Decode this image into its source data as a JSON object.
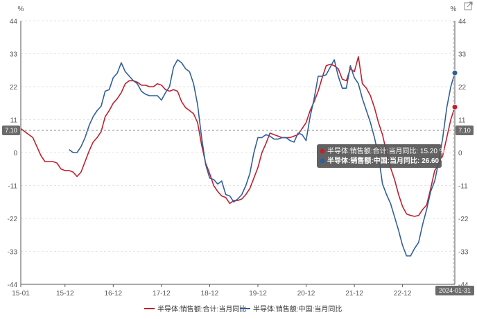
{
  "unit_left": "%",
  "unit_right": "%",
  "marker_left_label": "7.10",
  "marker_right_label": "7.10",
  "date_badge": "2024-01-31",
  "tooltip": {
    "line1": "半导体:销售额:合计:当月同比: 15.20  %",
    "line2": "半导体:销售额:中国:当月同比: 26.60  %"
  },
  "colors": {
    "total": "#c0202f",
    "china": "#2f5f9c",
    "badge_bg": "#6b6b6b",
    "tooltip_bg": "#555555"
  },
  "icons": [
    "share-icon"
  ],
  "chart_data": {
    "type": "line",
    "title": "",
    "xlabel": "",
    "ylabel": "%",
    "ylim": [
      -44,
      44
    ],
    "yticks": [
      44,
      33,
      22,
      11,
      0,
      -11,
      -22,
      -33,
      -44
    ],
    "x_range": [
      "2015-01",
      "2024-01"
    ],
    "x_tick_labels": [
      {
        "date": "2015-01",
        "label": "15-01"
      },
      {
        "date": "2015-12",
        "label": "15-12"
      },
      {
        "date": "2016-12",
        "label": "16-12"
      },
      {
        "date": "2017-12",
        "label": "17-12"
      },
      {
        "date": "2018-12",
        "label": "18-12"
      },
      {
        "date": "2019-12",
        "label": "19-12"
      },
      {
        "date": "2020-12",
        "label": "20-12"
      },
      {
        "date": "2021-12",
        "label": "21-12"
      },
      {
        "date": "2022-12",
        "label": "22-12"
      }
    ],
    "grid": true,
    "legend_position": "bottom",
    "series": [
      {
        "name": "半导体:销售额:合计:当月同比",
        "color": "#c0202f",
        "points": [
          [
            "2015-01",
            8.0
          ],
          [
            "2015-02",
            7.0
          ],
          [
            "2015-03",
            6.0
          ],
          [
            "2015-04",
            5.0
          ],
          [
            "2015-05",
            2.0
          ],
          [
            "2015-06",
            -1.0
          ],
          [
            "2015-07",
            -3.0
          ],
          [
            "2015-08",
            -3.0
          ],
          [
            "2015-09",
            -3.0
          ],
          [
            "2015-10",
            -3.5
          ],
          [
            "2015-11",
            -5.5
          ],
          [
            "2015-12",
            -6.0
          ],
          [
            "2016-01",
            -6.0
          ],
          [
            "2016-02",
            -6.5
          ],
          [
            "2016-03",
            -8.0
          ],
          [
            "2016-04",
            -6.5
          ],
          [
            "2016-05",
            -3.0
          ],
          [
            "2016-06",
            0.5
          ],
          [
            "2016-07",
            3.5
          ],
          [
            "2016-08",
            5.0
          ],
          [
            "2016-09",
            7.0
          ],
          [
            "2016-10",
            12.0
          ],
          [
            "2016-11",
            14.0
          ],
          [
            "2016-12",
            16.5
          ],
          [
            "2017-01",
            18.0
          ],
          [
            "2017-02",
            20.0
          ],
          [
            "2017-03",
            23.0
          ],
          [
            "2017-04",
            24.0
          ],
          [
            "2017-05",
            24.0
          ],
          [
            "2017-06",
            23.5
          ],
          [
            "2017-07",
            22.5
          ],
          [
            "2017-08",
            22.5
          ],
          [
            "2017-09",
            22.0
          ],
          [
            "2017-10",
            22.0
          ],
          [
            "2017-11",
            23.0
          ],
          [
            "2017-12",
            22.5
          ],
          [
            "2018-01",
            21.0
          ],
          [
            "2018-02",
            20.5
          ],
          [
            "2018-03",
            21.0
          ],
          [
            "2018-04",
            20.5
          ],
          [
            "2018-05",
            17.0
          ],
          [
            "2018-06",
            15.0
          ],
          [
            "2018-07",
            14.0
          ],
          [
            "2018-08",
            13.0
          ],
          [
            "2018-09",
            10.0
          ],
          [
            "2018-10",
            2.5
          ],
          [
            "2018-11",
            -3.5
          ],
          [
            "2018-12",
            -7.0
          ],
          [
            "2019-01",
            -11.0
          ],
          [
            "2019-02",
            -13.0
          ],
          [
            "2019-03",
            -14.5
          ],
          [
            "2019-04",
            -15.0
          ],
          [
            "2019-05",
            -17.0
          ],
          [
            "2019-06",
            -16.0
          ],
          [
            "2019-07",
            -16.0
          ],
          [
            "2019-08",
            -15.5
          ],
          [
            "2019-09",
            -14.0
          ],
          [
            "2019-10",
            -12.0
          ],
          [
            "2019-11",
            -8.5
          ],
          [
            "2019-12",
            -5.0
          ],
          [
            "2020-01",
            0.0
          ],
          [
            "2020-02",
            3.0
          ],
          [
            "2020-03",
            6.5
          ],
          [
            "2020-04",
            6.0
          ],
          [
            "2020-05",
            5.5
          ],
          [
            "2020-06",
            5.0
          ],
          [
            "2020-07",
            5.0
          ],
          [
            "2020-08",
            5.0
          ],
          [
            "2020-09",
            5.5
          ],
          [
            "2020-10",
            6.0
          ],
          [
            "2020-11",
            8.0
          ],
          [
            "2020-12",
            10.0
          ],
          [
            "2021-01",
            14.0
          ],
          [
            "2021-02",
            17.0
          ],
          [
            "2021-03",
            20.5
          ],
          [
            "2021-04",
            25.0
          ],
          [
            "2021-05",
            29.0
          ],
          [
            "2021-06",
            29.5
          ],
          [
            "2021-07",
            29.0
          ],
          [
            "2021-08",
            28.0
          ],
          [
            "2021-09",
            24.5
          ],
          [
            "2021-10",
            24.0
          ],
          [
            "2021-11",
            28.0
          ],
          [
            "2021-12",
            27.0
          ],
          [
            "2022-01",
            32.0
          ],
          [
            "2022-02",
            23.0
          ],
          [
            "2022-03",
            21.5
          ],
          [
            "2022-04",
            19.0
          ],
          [
            "2022-05",
            15.0
          ],
          [
            "2022-06",
            10.0
          ],
          [
            "2022-07",
            6.0
          ],
          [
            "2022-08",
            0.0
          ],
          [
            "2022-09",
            -5.0
          ],
          [
            "2022-10",
            -9.0
          ],
          [
            "2022-11",
            -14.0
          ],
          [
            "2022-12",
            -18.0
          ],
          [
            "2023-01",
            -20.5
          ],
          [
            "2023-02",
            -21.0
          ],
          [
            "2023-03",
            -21.3
          ],
          [
            "2023-04",
            -21.0
          ],
          [
            "2023-05",
            -19.0
          ],
          [
            "2023-06",
            -17.5
          ],
          [
            "2023-07",
            -12.0
          ],
          [
            "2023-08",
            -6.0
          ],
          [
            "2023-09",
            -4.0
          ],
          [
            "2023-10",
            -1.0
          ],
          [
            "2023-11",
            5.0
          ],
          [
            "2023-12",
            11.0
          ],
          [
            "2024-01",
            15.2
          ]
        ]
      },
      {
        "name": "半导体:销售额:中国:当月同比",
        "color": "#2f5f9c",
        "points": [
          [
            "2016-01",
            1.0
          ],
          [
            "2016-02",
            0.0
          ],
          [
            "2016-03",
            0.0
          ],
          [
            "2016-04",
            2.0
          ],
          [
            "2016-05",
            5.0
          ],
          [
            "2016-06",
            9.0
          ],
          [
            "2016-07",
            12.0
          ],
          [
            "2016-08",
            14.0
          ],
          [
            "2016-09",
            15.5
          ],
          [
            "2016-10",
            20.5
          ],
          [
            "2016-11",
            21.0
          ],
          [
            "2016-12",
            25.0
          ],
          [
            "2017-01",
            26.5
          ],
          [
            "2017-02",
            30.0
          ],
          [
            "2017-03",
            27.0
          ],
          [
            "2017-04",
            25.5
          ],
          [
            "2017-05",
            24.0
          ],
          [
            "2017-06",
            23.0
          ],
          [
            "2017-07",
            20.5
          ],
          [
            "2017-08",
            19.5
          ],
          [
            "2017-09",
            19.0
          ],
          [
            "2017-10",
            19.0
          ],
          [
            "2017-11",
            19.0
          ],
          [
            "2017-12",
            17.5
          ],
          [
            "2018-01",
            20.0
          ],
          [
            "2018-02",
            22.0
          ],
          [
            "2018-03",
            28.5
          ],
          [
            "2018-04",
            31.0
          ],
          [
            "2018-05",
            30.0
          ],
          [
            "2018-06",
            28.0
          ],
          [
            "2018-07",
            27.0
          ],
          [
            "2018-08",
            23.0
          ],
          [
            "2018-09",
            16.0
          ],
          [
            "2018-10",
            5.0
          ],
          [
            "2018-11",
            -4.0
          ],
          [
            "2018-12",
            -8.5
          ],
          [
            "2019-01",
            -9.0
          ],
          [
            "2019-02",
            -10.5
          ],
          [
            "2019-03",
            -9.5
          ],
          [
            "2019-04",
            -14.0
          ],
          [
            "2019-05",
            -14.5
          ],
          [
            "2019-06",
            -16.5
          ],
          [
            "2019-07",
            -15.5
          ],
          [
            "2019-08",
            -14.0
          ],
          [
            "2019-09",
            -11.0
          ],
          [
            "2019-10",
            -7.0
          ],
          [
            "2019-11",
            0.0
          ],
          [
            "2019-12",
            5.0
          ],
          [
            "2020-01",
            5.0
          ],
          [
            "2020-02",
            6.0
          ],
          [
            "2020-03",
            5.5
          ],
          [
            "2020-04",
            4.5
          ],
          [
            "2020-05",
            4.5
          ],
          [
            "2020-06",
            5.0
          ],
          [
            "2020-07",
            5.0
          ],
          [
            "2020-08",
            4.0
          ],
          [
            "2020-09",
            3.5
          ],
          [
            "2020-10",
            6.5
          ],
          [
            "2020-11",
            6.0
          ],
          [
            "2020-12",
            4.0
          ],
          [
            "2021-01",
            12.0
          ],
          [
            "2021-02",
            18.0
          ],
          [
            "2021-03",
            25.5
          ],
          [
            "2021-04",
            25.5
          ],
          [
            "2021-05",
            26.0
          ],
          [
            "2021-06",
            28.5
          ],
          [
            "2021-07",
            31.0
          ],
          [
            "2021-08",
            25.5
          ],
          [
            "2021-09",
            21.5
          ],
          [
            "2021-10",
            21.5
          ],
          [
            "2021-11",
            29.0
          ],
          [
            "2021-12",
            25.0
          ],
          [
            "2022-01",
            23.0
          ],
          [
            "2022-02",
            18.0
          ],
          [
            "2022-03",
            14.0
          ],
          [
            "2022-04",
            10.0
          ],
          [
            "2022-05",
            5.0
          ],
          [
            "2022-06",
            -1.0
          ],
          [
            "2022-07",
            -10.5
          ],
          [
            "2022-08",
            -14.0
          ],
          [
            "2022-09",
            -17.0
          ],
          [
            "2022-10",
            -21.5
          ],
          [
            "2022-11",
            -26.0
          ],
          [
            "2022-12",
            -31.0
          ],
          [
            "2023-01",
            -34.5
          ],
          [
            "2023-02",
            -34.5
          ],
          [
            "2023-03",
            -32.0
          ],
          [
            "2023-04",
            -30.0
          ],
          [
            "2023-05",
            -24.0
          ],
          [
            "2023-06",
            -19.0
          ],
          [
            "2023-07",
            -13.0
          ],
          [
            "2023-08",
            -9.5
          ],
          [
            "2023-09",
            -3.0
          ],
          [
            "2023-10",
            5.0
          ],
          [
            "2023-11",
            15.0
          ],
          [
            "2023-12",
            22.0
          ],
          [
            "2024-01",
            26.6
          ]
        ]
      }
    ]
  }
}
